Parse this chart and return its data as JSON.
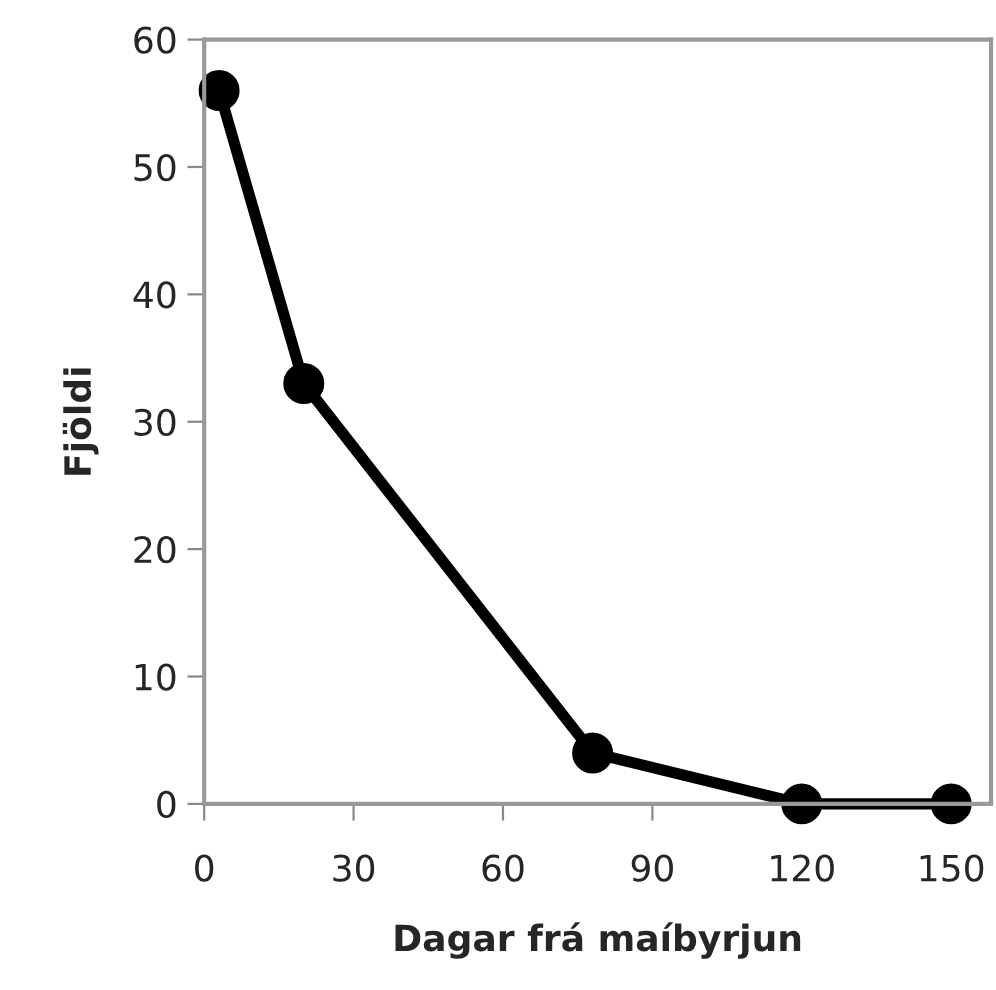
{
  "chart_data": {
    "type": "line",
    "xlabel": "Dagar frá maíbyrjun",
    "ylabel": "Fjöldi",
    "x": [
      3,
      20,
      78,
      120,
      150
    ],
    "series": [
      {
        "color": "#000000",
        "values": [
          56,
          33,
          4,
          0,
          0
        ]
      }
    ],
    "xlim": [
      0,
      158
    ],
    "xticks": [
      0,
      30,
      60,
      90,
      120,
      150
    ],
    "ylim": [
      0,
      60
    ],
    "yticks": [
      0,
      10,
      20,
      30,
      40,
      50,
      60
    ],
    "marker": "circle",
    "line_style": "solid",
    "grid": false,
    "legend": false
  }
}
